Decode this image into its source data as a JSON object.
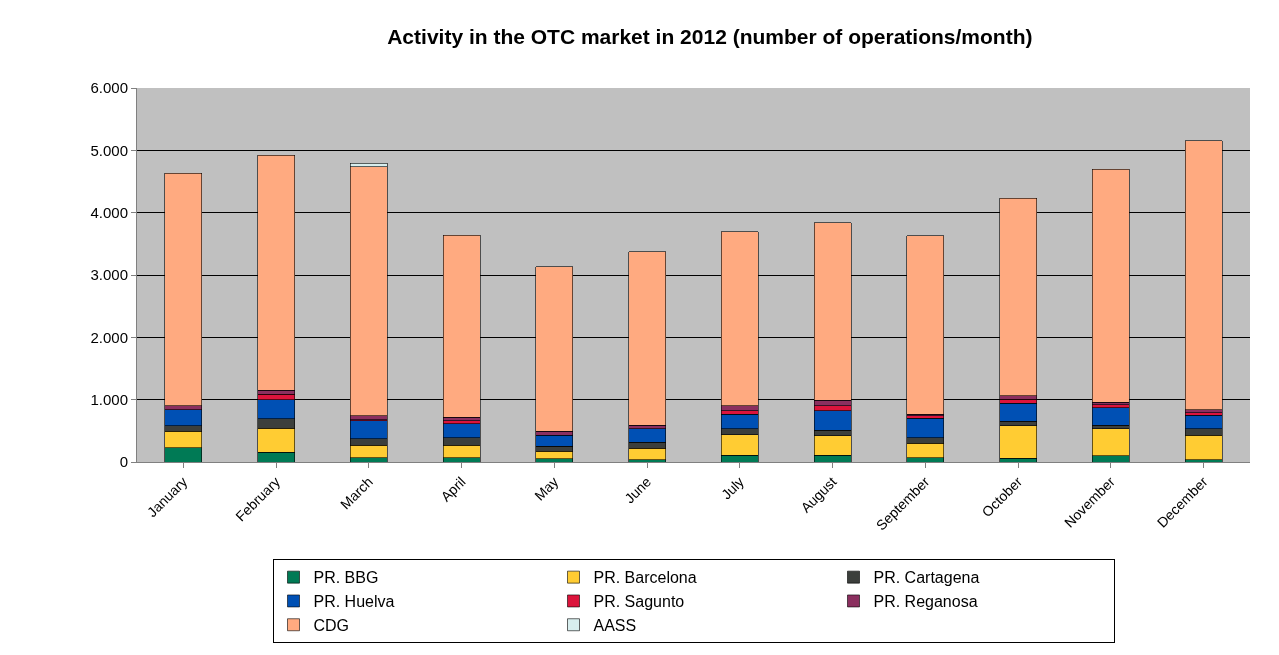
{
  "chart_data": {
    "type": "bar",
    "title": "Activity in the OTC market in 2012 (number of operations/month)",
    "categories": [
      "January",
      "February",
      "March",
      "April",
      "May",
      "June",
      "July",
      "August",
      "September",
      "October",
      "November",
      "December"
    ],
    "stacked": true,
    "series": [
      {
        "name": "PR. BBG",
        "color": "#007a55",
        "values": [
          230,
          160,
          70,
          70,
          50,
          40,
          110,
          110,
          70,
          60,
          100,
          40
        ]
      },
      {
        "name": "PR. Barcelona",
        "color": "#ffcc33",
        "values": [
          260,
          380,
          200,
          200,
          120,
          180,
          330,
          310,
          230,
          520,
          430,
          390
        ]
      },
      {
        "name": "PR. Cartagena",
        "color": "#3c3f3c",
        "values": [
          90,
          150,
          100,
          120,
          80,
          100,
          90,
          90,
          90,
          70,
          60,
          100
        ]
      },
      {
        "name": "PR. Huelva",
        "color": "#0050b4",
        "values": [
          260,
          310,
          290,
          220,
          180,
          210,
          240,
          310,
          310,
          290,
          280,
          220
        ]
      },
      {
        "name": "PR. Sagunto",
        "color": "#dc143c",
        "values": [
          null,
          90,
          20,
          50,
          null,
          null,
          50,
          80,
          40,
          70,
          50,
          40
        ]
      },
      {
        "name": "PR. Reganosa",
        "color": "#8b2f5f",
        "values": [
          60,
          60,
          60,
          60,
          60,
          60,
          80,
          90,
          30,
          50,
          40,
          50
        ]
      },
      {
        "name": "CDG",
        "color": "#ffaa80",
        "values": [
          3730,
          3770,
          4000,
          2920,
          2640,
          2780,
          2790,
          2850,
          2860,
          3170,
          3740,
          4310
        ]
      },
      {
        "name": "AASS",
        "color": "#d8eeee",
        "values": [
          null,
          null,
          50,
          null,
          null,
          null,
          null,
          null,
          null,
          null,
          null,
          null
        ]
      }
    ],
    "ylim": [
      0,
      6000
    ],
    "yticks": [
      {
        "value": 0,
        "label": "0"
      },
      {
        "value": 1000,
        "label": "1.000"
      },
      {
        "value": 2000,
        "label": "2.000"
      },
      {
        "value": 3000,
        "label": "3.000"
      },
      {
        "value": 4000,
        "label": "4.000"
      },
      {
        "value": 5000,
        "label": "5.000"
      },
      {
        "value": 6000,
        "label": "6.000"
      }
    ],
    "grid": "y",
    "legend": "bottom"
  }
}
